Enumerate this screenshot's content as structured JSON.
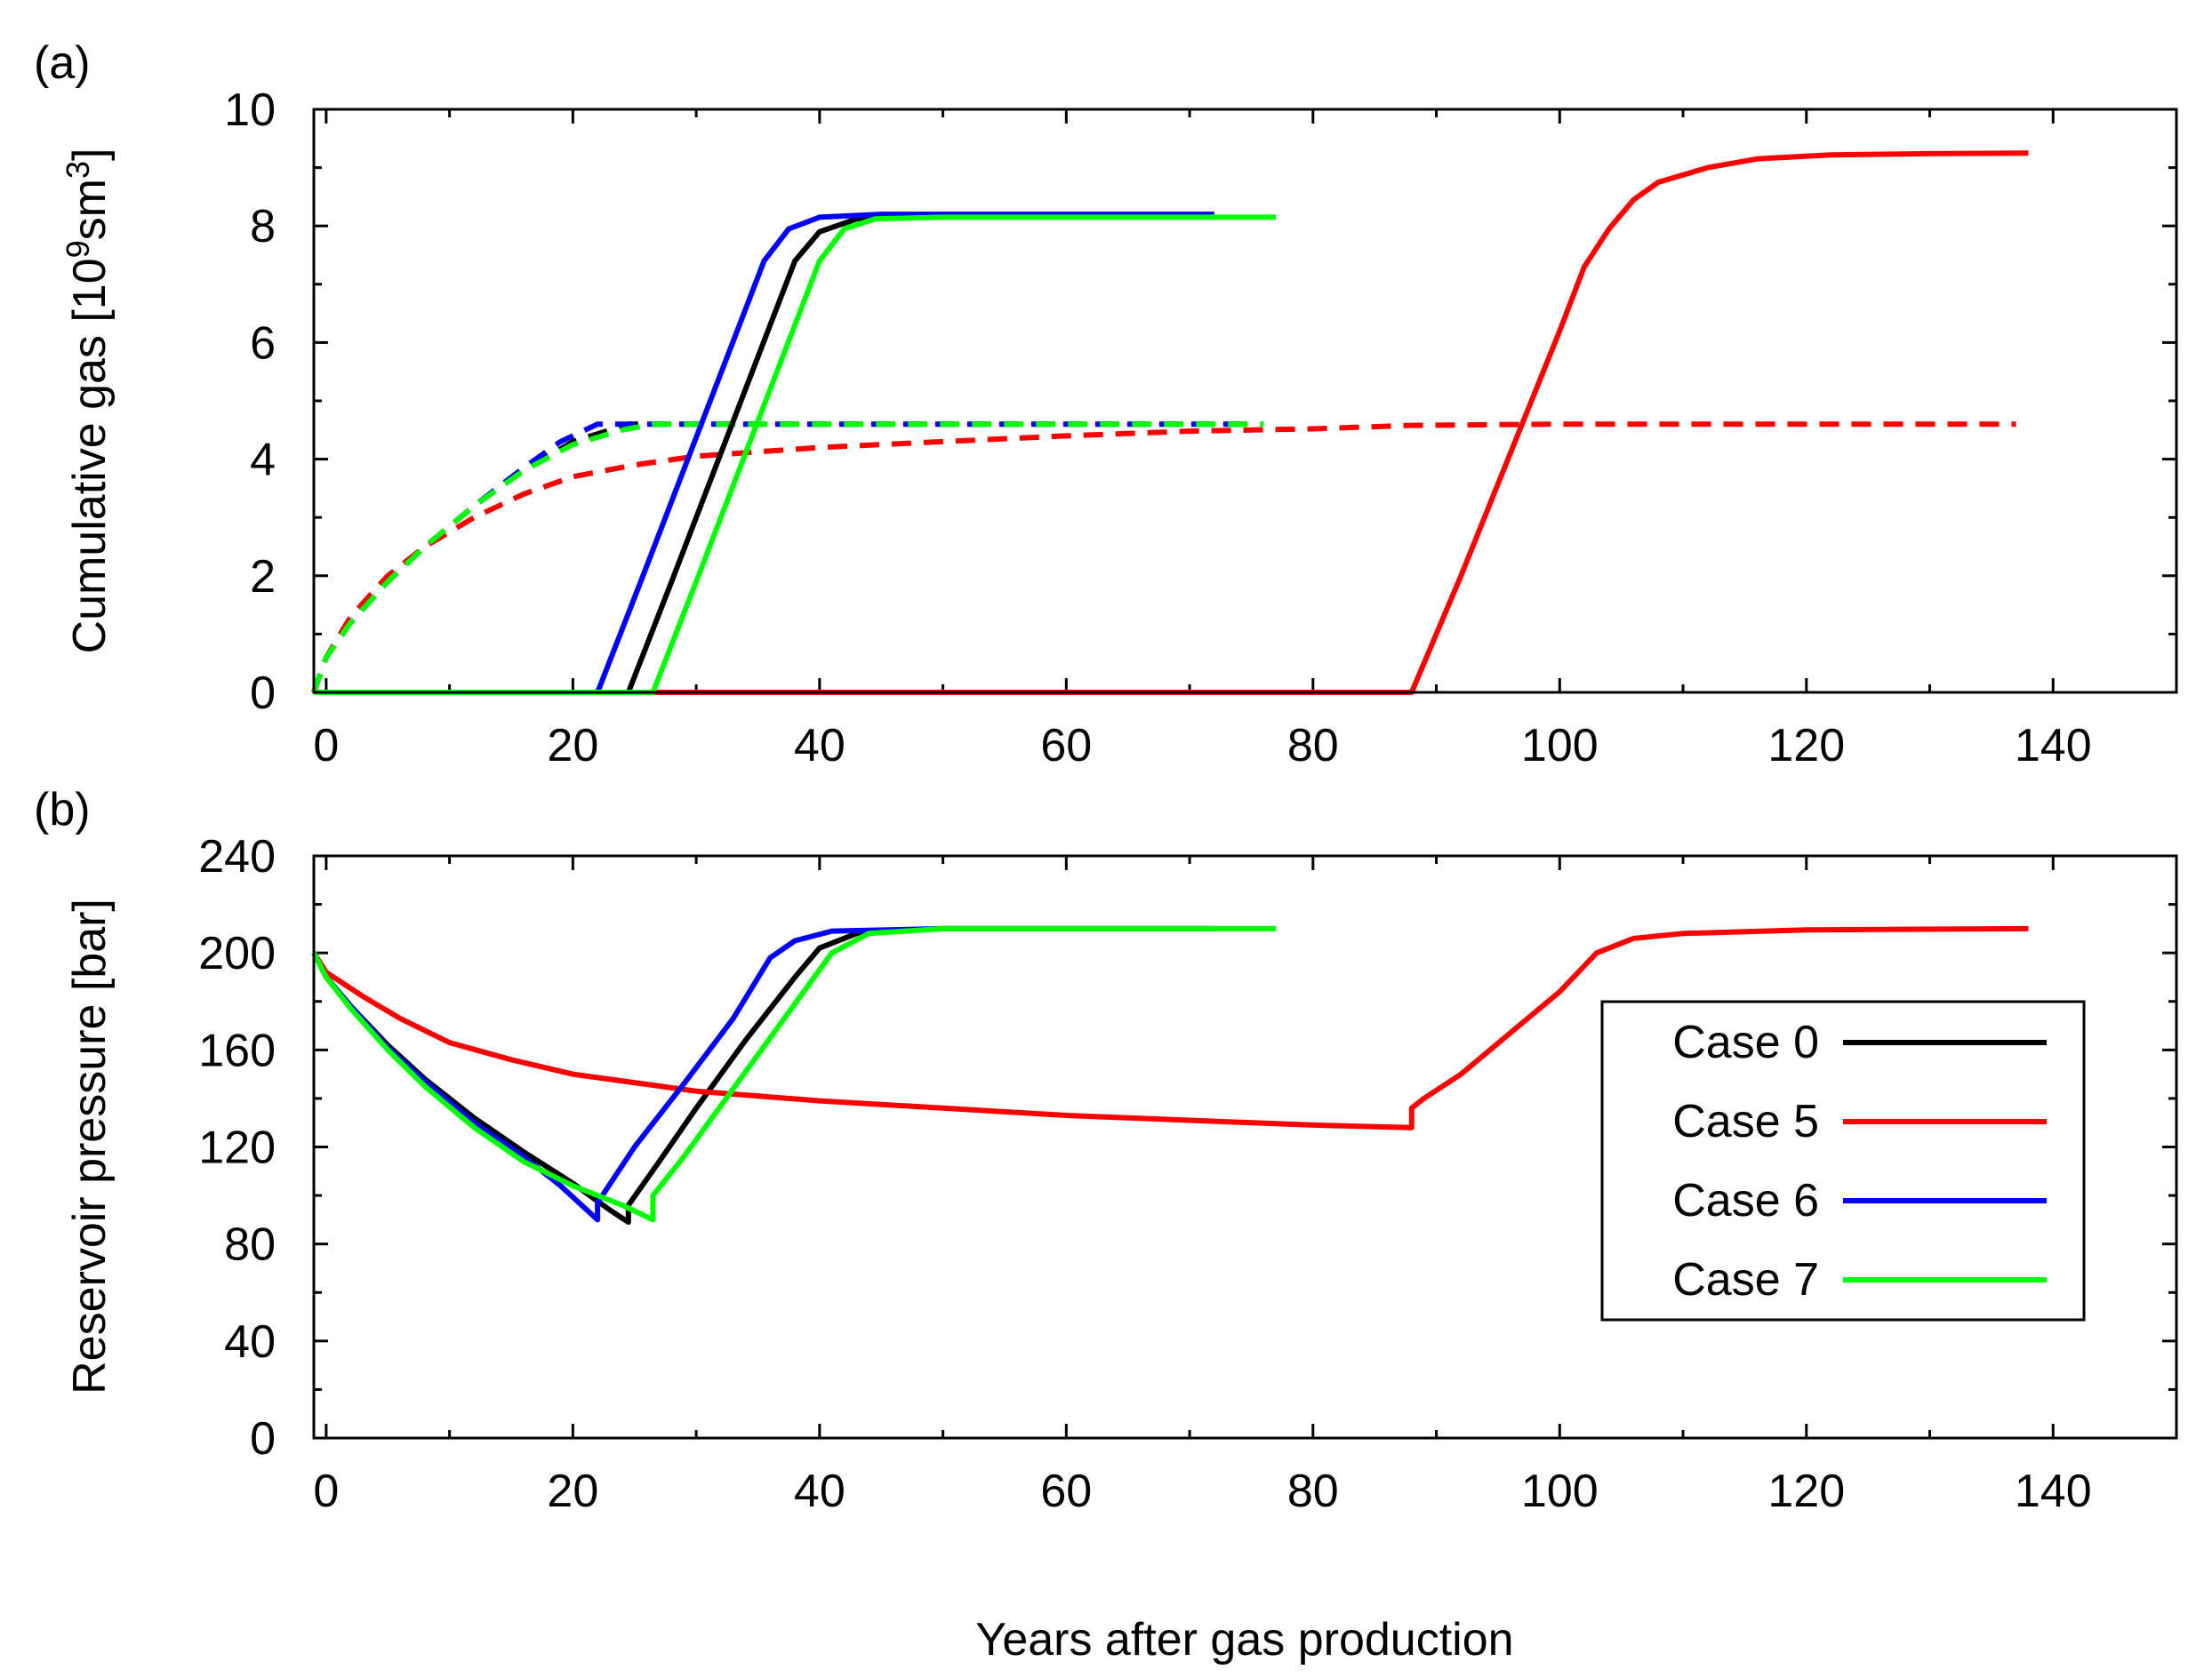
{
  "chart_data": [
    {
      "type": "line",
      "panel_label": "(a)",
      "title": "",
      "xlabel": "",
      "ylabel": "Cumulative gas [10",
      "ylabel_sup1": "9",
      "ylabel_mid": "sm",
      "ylabel_sup2": "3",
      "ylabel_end": "]",
      "xlim": [
        -1,
        150
      ],
      "ylim": [
        0,
        10
      ],
      "xticks": [
        0,
        20,
        40,
        60,
        80,
        100,
        120,
        140
      ],
      "xtick_labels": [
        "0",
        "20",
        "40",
        "60",
        "80",
        "100",
        "120",
        "140"
      ],
      "yticks": [
        0,
        2,
        4,
        6,
        8,
        10
      ],
      "ytick_labels": [
        "0",
        "2",
        "4",
        "6",
        "8",
        "10"
      ],
      "series": [
        {
          "name": "Case 0",
          "style": "solid",
          "color": "#000000",
          "points": [
            [
              -1,
              0
            ],
            [
              24.5,
              0
            ],
            [
              28,
              1.9
            ],
            [
              32,
              4.1
            ],
            [
              36,
              6.3
            ],
            [
              38,
              7.4
            ],
            [
              40,
              7.9
            ],
            [
              43,
              8.12
            ],
            [
              48,
              8.15
            ],
            [
              60,
              8.15
            ],
            [
              72,
              8.15
            ]
          ]
        },
        {
          "name": "Case 0 dashed",
          "style": "dashed",
          "color": "#000000",
          "points": [
            [
              -1,
              0
            ],
            [
              0,
              0.6
            ],
            [
              2,
              1.2
            ],
            [
              5,
              1.9
            ],
            [
              8,
              2.5
            ],
            [
              12,
              3.2
            ],
            [
              16,
              3.8
            ],
            [
              20,
              4.3
            ],
            [
              23,
              4.5
            ],
            [
              24.5,
              4.6
            ],
            [
              30,
              4.6
            ],
            [
              40,
              4.6
            ],
            [
              60,
              4.6
            ],
            [
              75,
              4.6
            ]
          ]
        },
        {
          "name": "Case 5",
          "style": "solid",
          "color": "#ff0000",
          "points": [
            [
              -1,
              0
            ],
            [
              88,
              0
            ],
            [
              92,
              2.0
            ],
            [
              96,
              4.1
            ],
            [
              100,
              6.2
            ],
            [
              102,
              7.3
            ],
            [
              104,
              7.95
            ],
            [
              106,
              8.45
            ],
            [
              108,
              8.75
            ],
            [
              112,
              9.0
            ],
            [
              116,
              9.15
            ],
            [
              122,
              9.22
            ],
            [
              130,
              9.24
            ],
            [
              138,
              9.25
            ]
          ]
        },
        {
          "name": "Case 5 dashed",
          "style": "dashed",
          "color": "#ff0000",
          "points": [
            [
              -1,
              0
            ],
            [
              0,
              0.6
            ],
            [
              2,
              1.3
            ],
            [
              5,
              2.0
            ],
            [
              8,
              2.5
            ],
            [
              12,
              3.0
            ],
            [
              16,
              3.4
            ],
            [
              20,
              3.7
            ],
            [
              25,
              3.9
            ],
            [
              30,
              4.05
            ],
            [
              40,
              4.2
            ],
            [
              50,
              4.3
            ],
            [
              60,
              4.4
            ],
            [
              70,
              4.48
            ],
            [
              80,
              4.52
            ],
            [
              88,
              4.58
            ],
            [
              100,
              4.6
            ],
            [
              120,
              4.6
            ],
            [
              137,
              4.6
            ]
          ]
        },
        {
          "name": "Case 6",
          "style": "solid",
          "color": "#0000ff",
          "points": [
            [
              -1,
              0
            ],
            [
              22,
              0
            ],
            [
              25.5,
              1.9
            ],
            [
              29.5,
              4.1
            ],
            [
              33.5,
              6.3
            ],
            [
              35.5,
              7.4
            ],
            [
              37.5,
              7.95
            ],
            [
              40,
              8.15
            ],
            [
              45,
              8.2
            ],
            [
              60,
              8.2
            ],
            [
              72,
              8.2
            ]
          ]
        },
        {
          "name": "Case 6 dashed",
          "style": "dashed",
          "color": "#0000ff",
          "points": [
            [
              -1,
              0
            ],
            [
              0,
              0.6
            ],
            [
              2,
              1.2
            ],
            [
              5,
              1.9
            ],
            [
              8,
              2.5
            ],
            [
              12,
              3.2
            ],
            [
              16,
              3.85
            ],
            [
              19,
              4.3
            ],
            [
              21,
              4.5
            ],
            [
              22,
              4.6
            ],
            [
              30,
              4.6
            ],
            [
              40,
              4.6
            ],
            [
              60,
              4.6
            ],
            [
              75,
              4.6
            ]
          ]
        },
        {
          "name": "Case 7",
          "style": "solid",
          "color": "#00ff00",
          "points": [
            [
              -1,
              0
            ],
            [
              26.5,
              0
            ],
            [
              30,
              1.9
            ],
            [
              34,
              4.1
            ],
            [
              38,
              6.3
            ],
            [
              40,
              7.4
            ],
            [
              42,
              7.95
            ],
            [
              44.5,
              8.12
            ],
            [
              50,
              8.15
            ],
            [
              60,
              8.15
            ],
            [
              77,
              8.15
            ]
          ]
        },
        {
          "name": "Case 7 dashed",
          "style": "dashed",
          "color": "#00ff00",
          "points": [
            [
              -1,
              0
            ],
            [
              0,
              0.6
            ],
            [
              2,
              1.2
            ],
            [
              5,
              1.9
            ],
            [
              8,
              2.5
            ],
            [
              12,
              3.2
            ],
            [
              16,
              3.8
            ],
            [
              20,
              4.25
            ],
            [
              24,
              4.5
            ],
            [
              26.5,
              4.6
            ],
            [
              30,
              4.6
            ],
            [
              40,
              4.6
            ],
            [
              60,
              4.6
            ],
            [
              76,
              4.6
            ]
          ]
        }
      ]
    },
    {
      "type": "line",
      "panel_label": "(b)",
      "title": "",
      "xlabel": "Years after gas production",
      "ylabel": "Reservoir pressure [bar]",
      "xlim": [
        -1,
        150
      ],
      "ylim": [
        0,
        240
      ],
      "xticks": [
        0,
        20,
        40,
        60,
        80,
        100,
        120,
        140
      ],
      "xtick_labels": [
        "0",
        "20",
        "40",
        "60",
        "80",
        "100",
        "120",
        "140"
      ],
      "yticks": [
        0,
        40,
        80,
        120,
        160,
        200,
        240
      ],
      "ytick_labels": [
        "0",
        "40",
        "80",
        "120",
        "160",
        "200",
        "240"
      ],
      "legend_position": "right",
      "series": [
        {
          "name": "Case 0",
          "style": "solid",
          "color": "#000000",
          "points": [
            [
              -1,
              200
            ],
            [
              0,
              190
            ],
            [
              2,
              178
            ],
            [
              5,
              162
            ],
            [
              8,
              148
            ],
            [
              12,
              132
            ],
            [
              16,
              118
            ],
            [
              20,
              105
            ],
            [
              23,
              94
            ],
            [
              24.5,
              89
            ],
            [
              24.5,
              96
            ],
            [
              27,
              114
            ],
            [
              30,
              136
            ],
            [
              34,
              164
            ],
            [
              38,
              190
            ],
            [
              40,
              202
            ],
            [
              43,
              208
            ],
            [
              50,
              210
            ],
            [
              60,
              210
            ],
            [
              72,
              210
            ]
          ]
        },
        {
          "name": "Case 5",
          "style": "solid",
          "color": "#ff0000",
          "points": [
            [
              -1,
              200
            ],
            [
              0,
              192
            ],
            [
              3,
              182
            ],
            [
              6,
              173
            ],
            [
              10,
              163
            ],
            [
              15,
              156
            ],
            [
              20,
              150
            ],
            [
              30,
              143
            ],
            [
              40,
              139
            ],
            [
              50,
              136
            ],
            [
              60,
              133
            ],
            [
              70,
              131
            ],
            [
              80,
              129
            ],
            [
              88,
              128
            ],
            [
              88,
              136
            ],
            [
              89,
              140
            ],
            [
              92,
              150
            ],
            [
              96,
              167
            ],
            [
              100,
              184
            ],
            [
              103,
              200
            ],
            [
              106,
              206
            ],
            [
              110,
              208
            ],
            [
              120,
              209.5
            ],
            [
              138,
              210
            ]
          ]
        },
        {
          "name": "Case 6",
          "style": "solid",
          "color": "#0000ff",
          "points": [
            [
              -1,
              200
            ],
            [
              0,
              190
            ],
            [
              2,
              178
            ],
            [
              5,
              161
            ],
            [
              8,
              147
            ],
            [
              12,
              130
            ],
            [
              16,
              116
            ],
            [
              19,
              104
            ],
            [
              22,
              90
            ],
            [
              22,
              97
            ],
            [
              25,
              120
            ],
            [
              29,
              146
            ],
            [
              33,
              173
            ],
            [
              36,
              198
            ],
            [
              38,
              205
            ],
            [
              41,
              209
            ],
            [
              50,
              210
            ],
            [
              60,
              210
            ],
            [
              72,
              210
            ]
          ]
        },
        {
          "name": "Case 7",
          "style": "solid",
          "color": "#00ff00",
          "points": [
            [
              -1,
              200
            ],
            [
              0,
              190
            ],
            [
              2,
              177
            ],
            [
              5,
              160
            ],
            [
              8,
              145
            ],
            [
              12,
              128
            ],
            [
              16,
              114
            ],
            [
              20,
              104
            ],
            [
              24,
              96
            ],
            [
              26.5,
              90
            ],
            [
              26.5,
              100
            ],
            [
              29,
              116
            ],
            [
              33,
              144
            ],
            [
              37,
              172
            ],
            [
              41,
              200
            ],
            [
              44,
              208
            ],
            [
              50,
              210
            ],
            [
              60,
              210
            ],
            [
              70,
              210
            ],
            [
              77,
              210
            ]
          ]
        }
      ]
    }
  ],
  "legend": {
    "items": [
      {
        "label": "Case 0",
        "color": "#000000"
      },
      {
        "label": "Case 5",
        "color": "#ff0000"
      },
      {
        "label": "Case 6",
        "color": "#0000ff"
      },
      {
        "label": "Case 7",
        "color": "#00ff00"
      }
    ]
  }
}
